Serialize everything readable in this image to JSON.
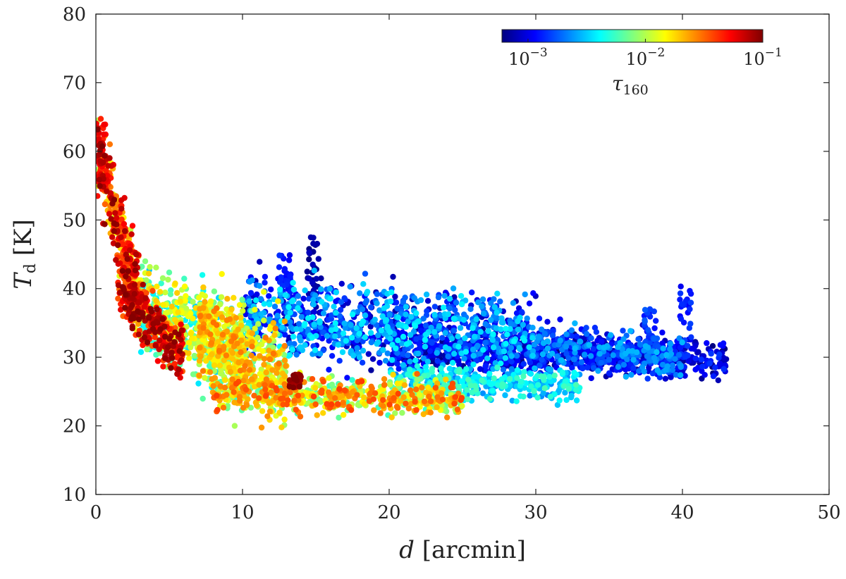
{
  "chart_data": {
    "type": "scatter",
    "xlabel_italic": "d",
    "xlabel_rest": " [arcmin]",
    "ylabel_italic": "T",
    "ylabel_sub": "d",
    "ylabel_rest": " [K]",
    "xlim": [
      0,
      50
    ],
    "ylim": [
      10,
      80
    ],
    "x_ticks": [
      0,
      10,
      20,
      30,
      40,
      50
    ],
    "y_ticks": [
      10,
      20,
      30,
      40,
      50,
      60,
      70,
      80
    ],
    "grid": false,
    "colorbar": {
      "placement": "top-right",
      "title_symbol": "τ",
      "title_sub": "160",
      "scale": "log",
      "range": [
        0.0006,
        0.1
      ],
      "ticks": [
        {
          "base": "10",
          "exp": "−3",
          "value": 0.001
        },
        {
          "base": "10",
          "exp": "−2",
          "value": 0.01
        },
        {
          "base": "10",
          "exp": "−1",
          "value": 0.1
        }
      ],
      "colormap": "jet"
    },
    "point_groups": [
      {
        "description": "steep inner rise",
        "x_range": [
          0.1,
          3.0
        ],
        "T_center_start": 60,
        "T_center_end": 38,
        "T_spread": 6,
        "tau_range": [
          0.01,
          0.1
        ],
        "count": 380
      },
      {
        "description": "dense hot core",
        "x_range": [
          1.5,
          6.0
        ],
        "T_center_start": 40,
        "T_center_end": 30,
        "T_spread": 4,
        "tau_range": [
          0.03,
          0.1
        ],
        "count": 260
      },
      {
        "description": "inner shell",
        "x_range": [
          3,
          10
        ],
        "T_center_start": 38,
        "T_center_end": 30,
        "T_spread": 6,
        "tau_range": [
          0.003,
          0.02
        ],
        "count": 520
      },
      {
        "description": "yellow-green bubble",
        "x_range": [
          7,
          13
        ],
        "T_center_start": 34,
        "T_center_end": 27,
        "T_spread": 7,
        "tau_range": [
          0.006,
          0.03
        ],
        "count": 520
      },
      {
        "description": "lower warm band",
        "x_range": [
          8,
          25
        ],
        "T_center_start": 25,
        "T_center_end": 24,
        "T_spread": 2.5,
        "tau_range": [
          0.005,
          0.04
        ],
        "count": 620
      },
      {
        "description": "blue outer region",
        "x_range": [
          10,
          30
        ],
        "T_center_start": 36,
        "T_center_end": 33,
        "T_spread": 5.5,
        "tau_range": [
          0.0007,
          0.004
        ],
        "count": 1100
      },
      {
        "description": "dark blue tail",
        "x_range": [
          20,
          43
        ],
        "T_center_start": 31,
        "T_center_end": 29.5,
        "T_spread": 2.5,
        "tau_range": [
          0.0006,
          0.0015
        ],
        "count": 700
      },
      {
        "description": "cyan lower rim",
        "x_range": [
          20,
          33
        ],
        "T_center_start": 27,
        "T_center_end": 26,
        "T_spread": 2.5,
        "tau_range": [
          0.002,
          0.006
        ],
        "count": 360
      },
      {
        "description": "blue ridge",
        "x_range": [
          30,
          40
        ],
        "T_center_start": 32,
        "T_center_end": 30,
        "T_spread": 3,
        "tau_range": [
          0.0008,
          0.003
        ],
        "count": 360
      }
    ],
    "spikes": [
      {
        "x": 12.9,
        "T_top": 45,
        "T_bottom": 38,
        "tau": 0.0012
      },
      {
        "x": 14.8,
        "T_top": 47.5,
        "T_bottom": 38,
        "tau": 0.0007
      },
      {
        "x": 40.2,
        "T_top": 41,
        "T_bottom": 30,
        "tau": 0.0013
      },
      {
        "x": 37.8,
        "T_top": 37,
        "T_bottom": 31,
        "tau": 0.0015
      },
      {
        "x": 13.6,
        "T_top": 27.5,
        "T_bottom": 25.5,
        "tau": 0.09
      },
      {
        "x": 0.4,
        "T_top": 65,
        "T_bottom": 55,
        "tau": 0.05
      }
    ]
  }
}
